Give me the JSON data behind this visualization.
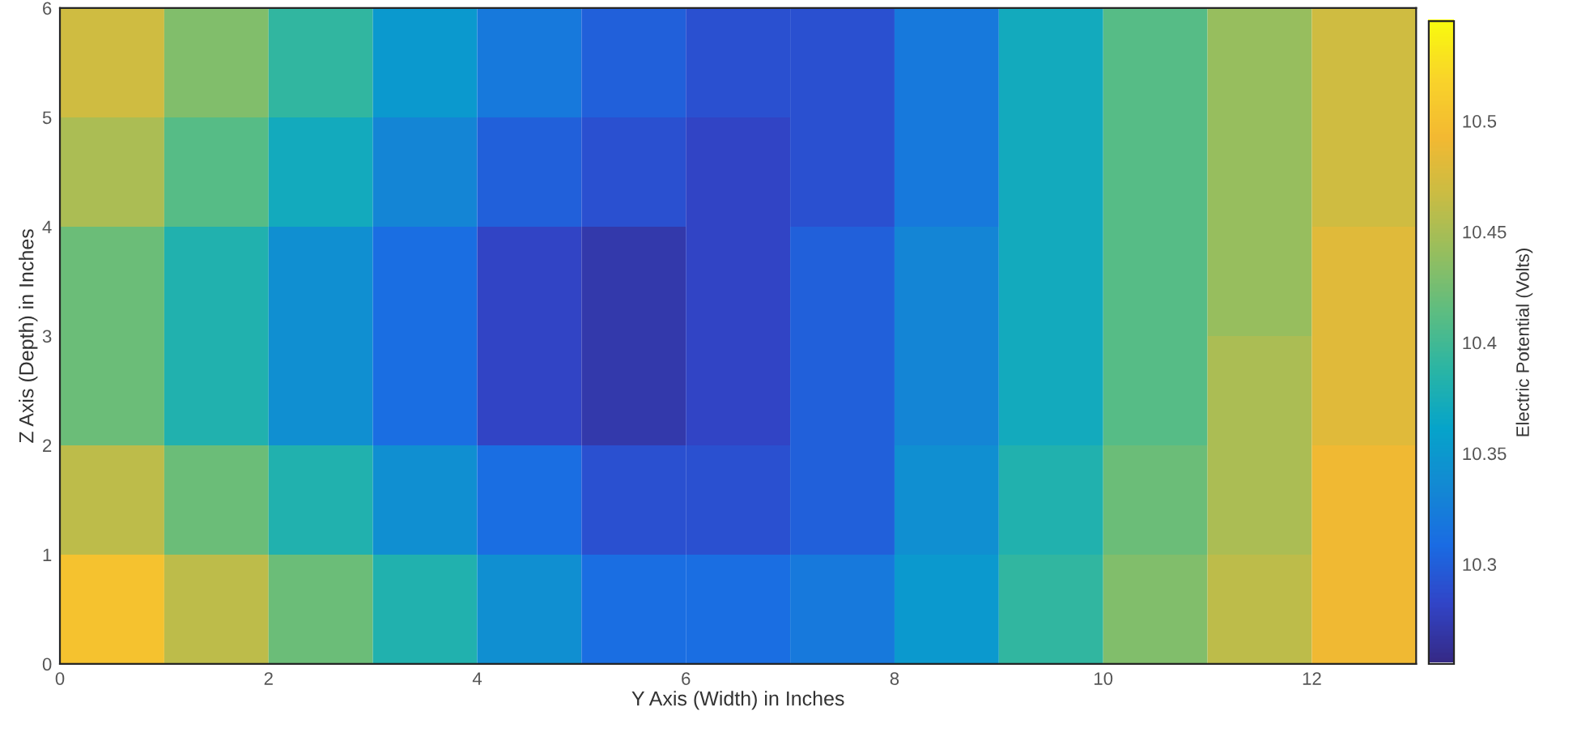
{
  "chart_data": {
    "type": "heatmap",
    "xlabel": "Y Axis (Width) in Inches",
    "ylabel": "Z Axis (Depth) in Inches",
    "clabel": "Electric Potential (Volts)",
    "x": [
      0.5,
      1.5,
      2.5,
      3.5,
      4.5,
      5.5,
      6.5,
      7.5,
      8.5,
      9.5,
      10.5,
      11.5,
      12.5
    ],
    "y": [
      5.5,
      4.5,
      3.5,
      2.5,
      1.5,
      0.5
    ],
    "cells": [
      [
        10.47,
        10.43,
        10.39,
        10.35,
        10.32,
        10.3,
        10.29,
        10.29,
        10.32,
        10.37,
        10.41,
        10.44,
        10.47
      ],
      [
        10.45,
        10.41,
        10.37,
        10.33,
        10.3,
        10.29,
        10.28,
        10.29,
        10.32,
        10.37,
        10.41,
        10.44,
        10.47
      ],
      [
        10.42,
        10.38,
        10.34,
        10.31,
        10.28,
        10.27,
        10.28,
        10.3,
        10.33,
        10.37,
        10.41,
        10.44,
        10.48
      ],
      [
        10.42,
        10.38,
        10.34,
        10.31,
        10.28,
        10.27,
        10.28,
        10.3,
        10.33,
        10.37,
        10.41,
        10.45,
        10.48
      ],
      [
        10.46,
        10.42,
        10.38,
        10.34,
        10.31,
        10.29,
        10.29,
        10.3,
        10.34,
        10.38,
        10.42,
        10.45,
        10.49
      ],
      [
        10.5,
        10.46,
        10.42,
        10.38,
        10.34,
        10.31,
        10.31,
        10.32,
        10.35,
        10.39,
        10.43,
        10.46,
        10.49
      ]
    ],
    "xlim": [
      0,
      13
    ],
    "ylim": [
      0,
      6
    ],
    "xticks": [
      0,
      2,
      4,
      6,
      8,
      10,
      12
    ],
    "yticks": [
      0,
      1,
      2,
      3,
      4,
      5,
      6
    ],
    "clim": [
      10.255,
      10.545
    ],
    "cticks": [
      10.3,
      10.35,
      10.4,
      10.45,
      10.5
    ],
    "grid": false
  }
}
